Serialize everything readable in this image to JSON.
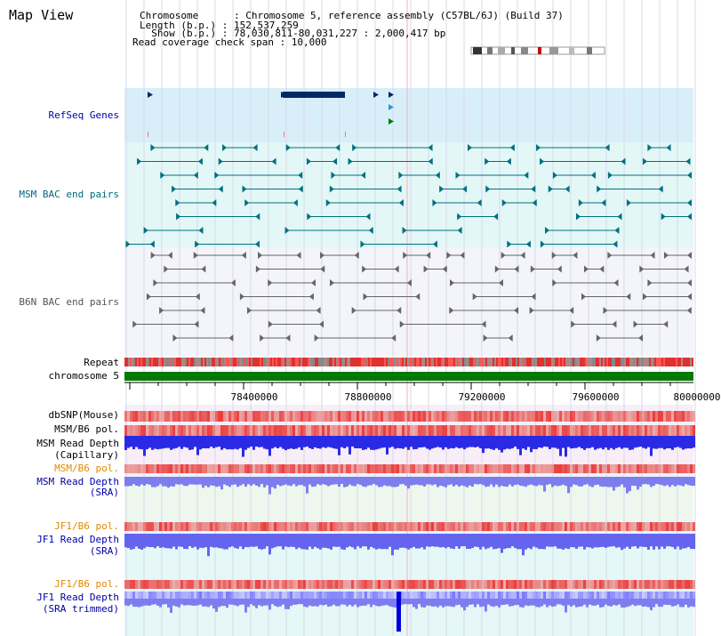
{
  "page": {
    "title": "Map View"
  },
  "header": {
    "chromosome_line": "Chromosome      : Chromosome 5, reference assembly (C57BL/6J) (Build 37)",
    "length_line": "Length (b.p.) : 152,537,259",
    "show_line": "  Show (b.p.) : 78,030,811-80,031,227 : 2,000,417 bp",
    "coverage_line": "Read coverage check span : 10,000"
  },
  "tracks": {
    "refseq": "RefSeq Genes",
    "msm_bac": "MSM BAC end pairs",
    "b6n_bac": "B6N BAC end pairs",
    "repeat": "Repeat",
    "chromosome": "chromosome 5",
    "dbsnp": "dbSNP(Mouse)",
    "msm_b6_pol_1": "MSM/B6 pol.",
    "msm_depth_cap_1": "MSM Read Depth",
    "msm_depth_cap_2": "(Capillary)",
    "msm_b6_pol_2": "MSM/B6 pol.",
    "msm_depth_sra_1": "MSM Read Depth",
    "msm_depth_sra_2": "(SRA)",
    "jf1_b6_pol_1": "JF1/B6 pol.",
    "jf1_depth_sra_1": "JF1 Read Depth",
    "jf1_depth_sra_2": "(SRA)",
    "jf1_b6_pol_2": "JF1/B6 pol.",
    "jf1_depth_trim_1": "JF1 Read Depth",
    "jf1_depth_trim_2": "(SRA trimmed)"
  },
  "axis": {
    "ticks": [
      "78400000",
      "78800000",
      "79200000",
      "79600000",
      "80000000"
    ]
  },
  "colors": {
    "refseq_bg": "#d8effa",
    "msm_bac_bg": "#e3f7f7",
    "b6n_bac_bg": "#f4f4fb",
    "blue_label": "#0000aa",
    "teal_label": "#006a7d",
    "gray_label": "#555555",
    "orange_label": "#e08a00",
    "chromosome_bar": "#007a00"
  }
}
